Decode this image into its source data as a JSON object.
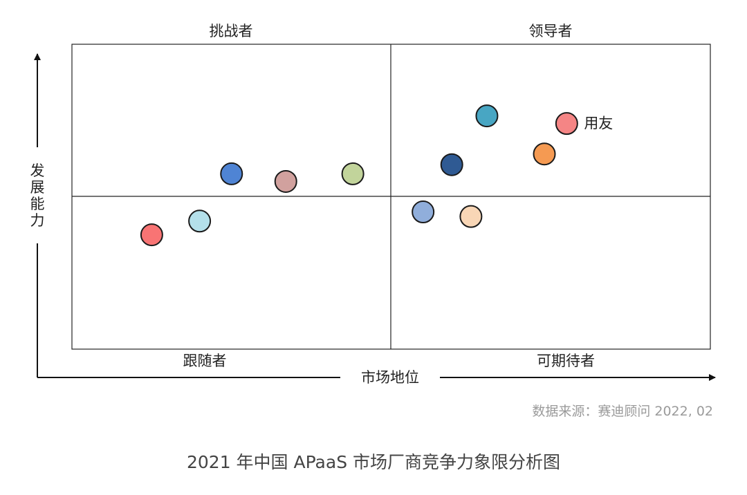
{
  "chart_data": {
    "type": "scatter",
    "title": "2021 年中国 APaaS 市场厂商竞争力象限分析图",
    "source": "数据来源：赛迪顾问  2022, 02",
    "xlabel": "市场地位",
    "ylabel": "发展能力",
    "xlim": [
      0,
      100
    ],
    "ylim": [
      0,
      100
    ],
    "grid": false,
    "quadrants": {
      "top_left": "挑战者",
      "top_right": "领导者",
      "bottom_left": "跟随者",
      "bottom_right": "可期待者"
    },
    "points": [
      {
        "x": 12.5,
        "y": 37.5,
        "color": "#f87474",
        "label": ""
      },
      {
        "x": 20.0,
        "y": 42.0,
        "color": "#b4e0ea",
        "label": ""
      },
      {
        "x": 25.0,
        "y": 57.5,
        "color": "#4f84d4",
        "label": ""
      },
      {
        "x": 33.5,
        "y": 55.0,
        "color": "#d1a19e",
        "label": ""
      },
      {
        "x": 44.0,
        "y": 57.5,
        "color": "#c2d49b",
        "label": ""
      },
      {
        "x": 55.0,
        "y": 45.0,
        "color": "#90aedb",
        "label": ""
      },
      {
        "x": 62.5,
        "y": 43.5,
        "color": "#f8d6b6",
        "label": ""
      },
      {
        "x": 59.5,
        "y": 60.5,
        "color": "#2f5a93",
        "label": ""
      },
      {
        "x": 65.0,
        "y": 76.5,
        "color": "#48a6c3",
        "label": ""
      },
      {
        "x": 74.0,
        "y": 64.0,
        "color": "#f59a52",
        "label": ""
      },
      {
        "x": 77.5,
        "y": 74.0,
        "color": "#f58585",
        "label": "用友"
      }
    ]
  }
}
